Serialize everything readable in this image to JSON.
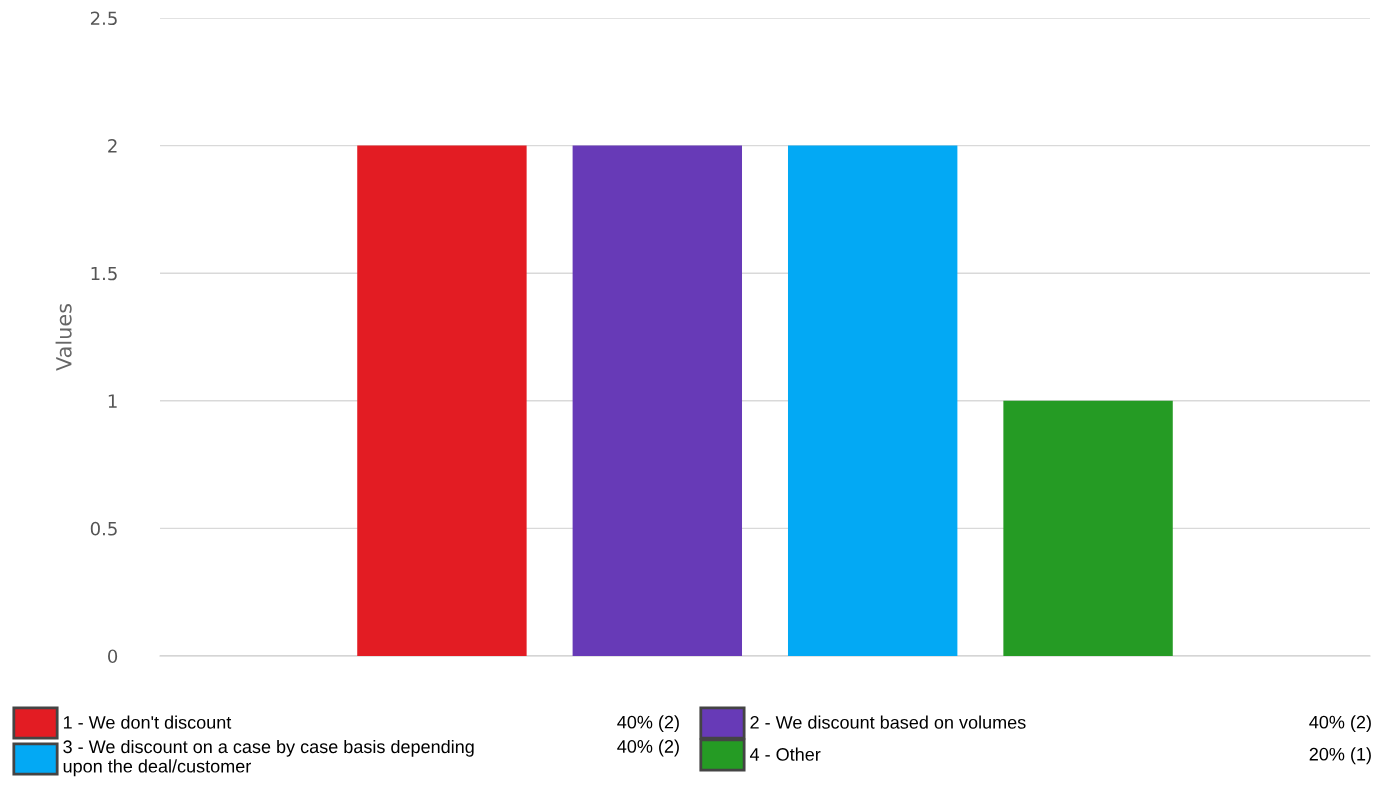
{
  "chart_data": {
    "type": "bar",
    "ylabel": "Values",
    "categories": [
      null
    ],
    "series": [
      {
        "name": "1 - We don't discount",
        "color": "#e31c23",
        "values": [
          2
        ]
      },
      {
        "name": "2 - We discount based on volumes",
        "color": "#673ab7",
        "values": [
          2
        ]
      },
      {
        "name": "3 - We discount on a case by case basis depending\nupon the deal/customer",
        "color": "#03a9f4",
        "values": [
          2
        ]
      },
      {
        "name": "4 - Other",
        "color": "#259b24",
        "values": [
          1
        ]
      }
    ],
    "annotations": [
      "40% (2)",
      "40% (2)",
      "40% (2)",
      "20% (1)"
    ],
    "ylim": [
      0,
      2.5
    ],
    "yticks": [
      0,
      0.5,
      1,
      1.5,
      2,
      2.5
    ],
    "grid": "y",
    "legend": "bottom",
    "tick_labels": "y"
  }
}
